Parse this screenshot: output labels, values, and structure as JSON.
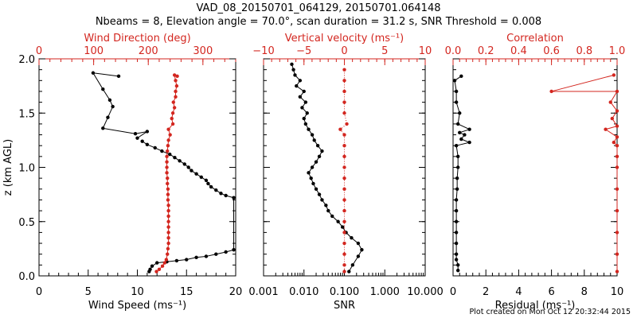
{
  "title": {
    "line1": "VAD_08_20150701_064129, 20150701.064148",
    "line2": "Nbeams = 8, Elevation angle = 70.0°, scan duration = 31.2 s, SNR Threshold = 0.008"
  },
  "footer": "Plot created on Mon Oct 12 20:32:44 2015",
  "colors": {
    "primary": "#000000",
    "secondary": "#d3261f"
  },
  "chart_data": [
    {
      "type": "scatter",
      "panel": "left",
      "ylabel": "z (km AGL)",
      "ylim": [
        0,
        2
      ],
      "ytick_labels": [
        "0.0",
        "0.5",
        "1.0",
        "1.5",
        "2.0"
      ],
      "xlabel": "Wind Speed (ms⁻¹)",
      "xlim": [
        0,
        20
      ],
      "xtick_labels": [
        "0",
        "5",
        "10",
        "15",
        "20"
      ],
      "top_xlabel": "Wind Direction (deg)",
      "top_xlim": [
        0,
        360
      ],
      "top_xtick_labels": [
        "0",
        "100",
        "200",
        "300"
      ],
      "series": [
        {
          "axis": "bottom",
          "color": "#000000",
          "line": "partial",
          "points": [
            [
              11.2,
              0.04
            ],
            [
              11.3,
              0.06
            ],
            [
              11.5,
              0.09
            ],
            [
              12.0,
              0.12
            ],
            [
              13.0,
              0.13
            ],
            [
              14.0,
              0.14
            ],
            [
              15.0,
              0.15
            ],
            [
              16.0,
              0.17
            ],
            [
              17.0,
              0.18
            ],
            [
              18.0,
              0.2
            ],
            [
              19.0,
              0.22
            ],
            [
              19.8,
              0.24
            ],
            [
              19.8,
              0.72
            ],
            [
              19.0,
              0.74
            ],
            [
              18.5,
              0.76
            ],
            [
              18.0,
              0.79
            ],
            [
              17.5,
              0.82
            ],
            [
              17.2,
              0.85
            ],
            [
              17.0,
              0.88
            ],
            [
              16.5,
              0.91
            ],
            [
              16.0,
              0.94
            ],
            [
              15.5,
              0.97
            ],
            [
              15.2,
              1.0
            ],
            [
              14.8,
              1.03
            ],
            [
              14.3,
              1.06
            ],
            [
              13.8,
              1.09
            ],
            [
              13.3,
              1.12
            ],
            [
              12.5,
              1.15
            ],
            [
              11.8,
              1.18
            ],
            [
              11.0,
              1.21
            ],
            [
              10.5,
              1.24
            ],
            [
              10.0,
              1.27
            ],
            [
              11.0,
              1.33
            ],
            [
              9.8,
              1.31
            ],
            [
              6.5,
              1.36
            ],
            [
              7.0,
              1.46
            ],
            [
              7.5,
              1.56
            ],
            [
              7.2,
              1.62
            ],
            [
              6.5,
              1.72
            ],
            [
              5.5,
              1.87
            ],
            [
              8.1,
              1.84
            ]
          ],
          "line_break_after": 30
        },
        {
          "axis": "top",
          "color": "#d3261f",
          "points": [
            [
              215,
              0.04
            ],
            [
              220,
              0.06
            ],
            [
              226,
              0.09
            ],
            [
              230,
              0.12
            ],
            [
              233,
              0.15
            ],
            [
              235,
              0.2
            ],
            [
              236,
              0.25
            ],
            [
              237,
              0.3
            ],
            [
              237,
              0.35
            ],
            [
              237,
              0.4
            ],
            [
              237,
              0.45
            ],
            [
              237,
              0.5
            ],
            [
              237,
              0.55
            ],
            [
              237,
              0.6
            ],
            [
              237,
              0.65
            ],
            [
              236,
              0.7
            ],
            [
              236,
              0.75
            ],
            [
              236,
              0.8
            ],
            [
              235,
              0.85
            ],
            [
              235,
              0.9
            ],
            [
              234,
              0.95
            ],
            [
              234,
              1.0
            ],
            [
              234,
              1.05
            ],
            [
              234,
              1.1
            ],
            [
              235,
              1.15
            ],
            [
              236,
              1.2
            ],
            [
              237,
              1.25
            ],
            [
              240,
              1.3
            ],
            [
              237,
              1.35
            ],
            [
              245,
              1.4
            ],
            [
              243,
              1.45
            ],
            [
              245,
              1.5
            ],
            [
              248,
              1.55
            ],
            [
              246,
              1.6
            ],
            [
              250,
              1.65
            ],
            [
              250,
              1.7
            ],
            [
              252,
              1.75
            ],
            [
              250,
              1.8
            ],
            [
              248,
              1.85
            ],
            [
              253,
              1.84
            ]
          ]
        }
      ]
    },
    {
      "type": "scatter",
      "panel": "middle",
      "ylim": [
        0,
        2
      ],
      "xlabel": "SNR",
      "xlim": [
        0.001,
        10
      ],
      "xscale": "log",
      "xtick_labels": [
        "0.001",
        "0.010",
        "0.100",
        "1.000",
        "10.000"
      ],
      "top_xlabel": "Vertical velocity (ms⁻¹)",
      "top_xlim": [
        -10,
        10
      ],
      "top_xtick_labels": [
        "−10",
        "−5",
        "0",
        "5",
        "10"
      ],
      "series": [
        {
          "axis": "bottom",
          "color": "#000000",
          "points": [
            [
              0.13,
              0.04
            ],
            [
              0.16,
              0.1
            ],
            [
              0.22,
              0.18
            ],
            [
              0.27,
              0.24
            ],
            [
              0.22,
              0.3
            ],
            [
              0.15,
              0.35
            ],
            [
              0.11,
              0.4
            ],
            [
              0.09,
              0.45
            ],
            [
              0.07,
              0.5
            ],
            [
              0.05,
              0.55
            ],
            [
              0.04,
              0.6
            ],
            [
              0.035,
              0.65
            ],
            [
              0.028,
              0.7
            ],
            [
              0.024,
              0.75
            ],
            [
              0.02,
              0.8
            ],
            [
              0.017,
              0.85
            ],
            [
              0.015,
              0.9
            ],
            [
              0.013,
              0.95
            ],
            [
              0.016,
              1.0
            ],
            [
              0.02,
              1.05
            ],
            [
              0.024,
              1.1
            ],
            [
              0.028,
              1.15
            ],
            [
              0.022,
              1.2
            ],
            [
              0.018,
              1.25
            ],
            [
              0.016,
              1.3
            ],
            [
              0.013,
              1.35
            ],
            [
              0.011,
              1.4
            ],
            [
              0.01,
              1.45
            ],
            [
              0.012,
              1.5
            ],
            [
              0.009,
              1.55
            ],
            [
              0.011,
              1.6
            ],
            [
              0.008,
              1.65
            ],
            [
              0.01,
              1.7
            ],
            [
              0.0065,
              1.75
            ],
            [
              0.008,
              1.8
            ],
            [
              0.006,
              1.85
            ],
            [
              0.0055,
              1.9
            ],
            [
              0.005,
              1.95
            ]
          ]
        },
        {
          "axis": "top",
          "color": "#d3261f",
          "style": "dotted",
          "points": [
            [
              0.0,
              0.04
            ],
            [
              0.0,
              0.1
            ],
            [
              0.0,
              0.2
            ],
            [
              0.0,
              0.3
            ],
            [
              0.0,
              0.4
            ],
            [
              0.0,
              0.5
            ],
            [
              0.0,
              0.6
            ],
            [
              0.0,
              0.7
            ],
            [
              0.0,
              0.8
            ],
            [
              0.0,
              0.9
            ],
            [
              0.0,
              1.0
            ],
            [
              0.0,
              1.1
            ],
            [
              0.0,
              1.2
            ],
            [
              0.0,
              1.3
            ],
            [
              -0.5,
              1.35
            ],
            [
              0.3,
              1.4
            ],
            [
              0.0,
              1.5
            ],
            [
              0.0,
              1.6
            ],
            [
              0.0,
              1.7
            ],
            [
              0.0,
              1.8
            ],
            [
              0.0,
              1.9
            ]
          ]
        }
      ]
    },
    {
      "type": "scatter",
      "panel": "right",
      "ylim": [
        0,
        2
      ],
      "xlabel": "Residual (ms⁻¹)",
      "xlim": [
        0,
        10
      ],
      "xtick_labels": [
        "0",
        "2",
        "4",
        "6",
        "8",
        "10"
      ],
      "top_xlabel": "Correlation",
      "top_xlim": [
        0,
        1
      ],
      "top_xtick_labels": [
        "0.0",
        "0.2",
        "0.4",
        "0.6",
        "0.8",
        "1.0"
      ],
      "series": [
        {
          "axis": "bottom",
          "color": "#000000",
          "points": [
            [
              0.3,
              0.05
            ],
            [
              0.3,
              0.1
            ],
            [
              0.2,
              0.15
            ],
            [
              0.2,
              0.2
            ],
            [
              0.2,
              0.3
            ],
            [
              0.2,
              0.4
            ],
            [
              0.2,
              0.5
            ],
            [
              0.2,
              0.6
            ],
            [
              0.2,
              0.7
            ],
            [
              0.25,
              0.8
            ],
            [
              0.25,
              0.9
            ],
            [
              0.3,
              1.0
            ],
            [
              0.3,
              1.1
            ],
            [
              0.2,
              1.2
            ],
            [
              1.0,
              1.23
            ],
            [
              0.5,
              1.26
            ],
            [
              0.7,
              1.3
            ],
            [
              0.4,
              1.32
            ],
            [
              1.0,
              1.35
            ],
            [
              0.3,
              1.4
            ],
            [
              0.4,
              1.5
            ],
            [
              0.2,
              1.6
            ],
            [
              0.2,
              1.7
            ],
            [
              0.1,
              1.8
            ],
            [
              0.5,
              1.84
            ]
          ]
        },
        {
          "axis": "top",
          "color": "#d3261f",
          "points": [
            [
              1.0,
              0.04
            ],
            [
              1.0,
              0.2
            ],
            [
              1.0,
              0.4
            ],
            [
              1.0,
              0.6
            ],
            [
              1.0,
              0.8
            ],
            [
              1.0,
              1.0
            ],
            [
              1.0,
              1.1
            ],
            [
              1.0,
              1.2
            ],
            [
              0.98,
              1.23
            ],
            [
              1.0,
              1.28
            ],
            [
              0.93,
              1.35
            ],
            [
              1.0,
              1.38
            ],
            [
              0.97,
              1.45
            ],
            [
              1.0,
              1.52
            ],
            [
              0.96,
              1.6
            ],
            [
              1.0,
              1.7
            ],
            [
              0.6,
              1.7
            ],
            [
              0.98,
              1.85
            ]
          ]
        }
      ]
    }
  ]
}
